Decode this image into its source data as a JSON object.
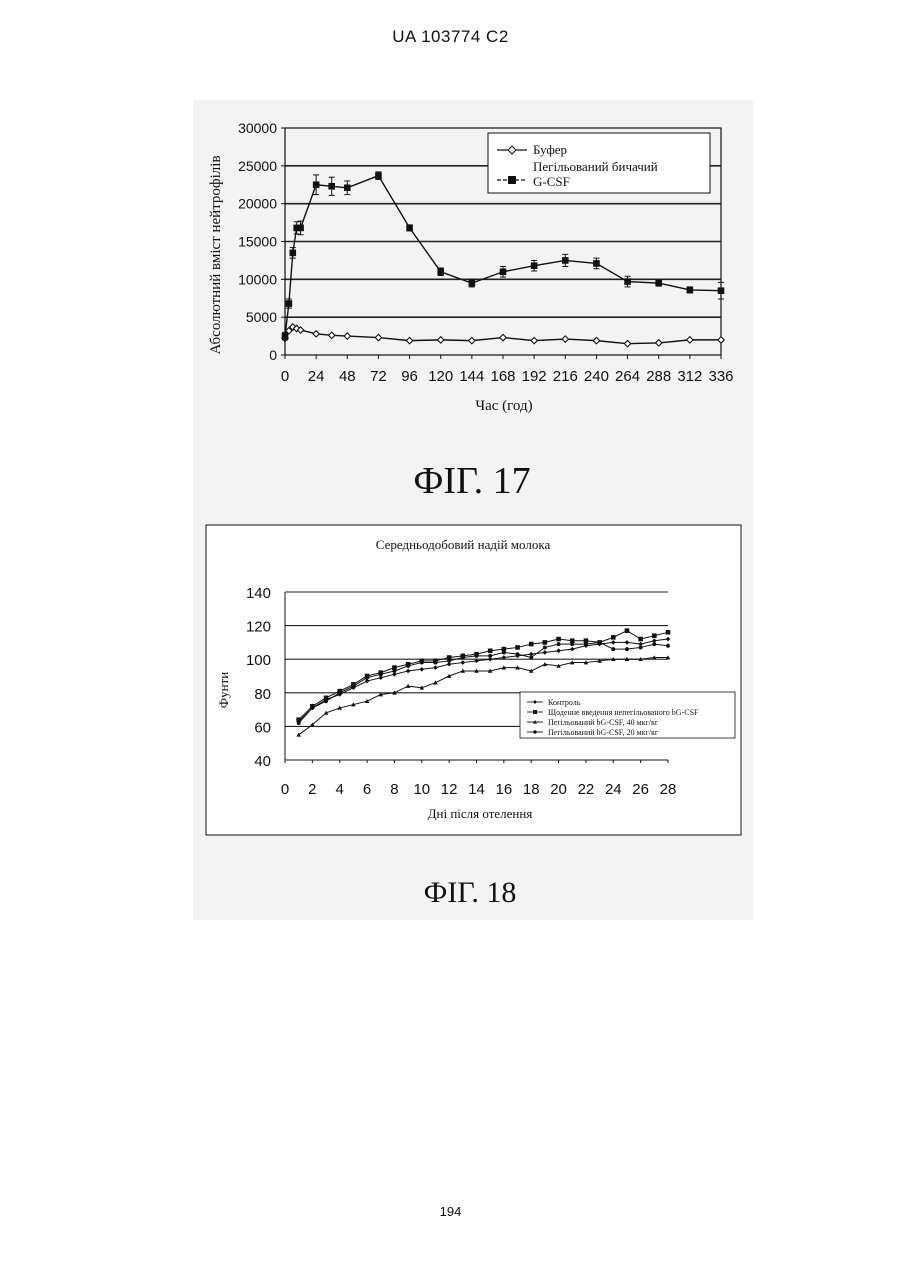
{
  "header": "UA   103774   C2",
  "page_number": "194",
  "chart_data": [
    {
      "type": "line",
      "figure_label": "ФІГ. 17",
      "title": "",
      "xlabel": "Час (год)",
      "ylabel": "Абсолютний вміст нейтрофілів",
      "xlim": [
        0,
        336
      ],
      "ylim": [
        0,
        30000
      ],
      "xticks": [
        "0",
        "24",
        "48",
        "72",
        "96",
        "120",
        "144",
        "168",
        "192",
        "216",
        "240",
        "264",
        "288",
        "312",
        "336"
      ],
      "yticks": [
        "0",
        "5000",
        "10000",
        "15000",
        "20000",
        "25000",
        "30000"
      ],
      "legend_position": "top-right",
      "legend": [
        "Буфер",
        "Пегільований бичачий",
        "G-CSF"
      ],
      "series": [
        {
          "name": "Буфер",
          "marker": "diamond-open",
          "x": [
            0,
            3,
            6,
            9,
            12,
            24,
            36,
            48,
            72,
            96,
            120,
            144,
            168,
            192,
            216,
            240,
            264,
            288,
            312,
            336
          ],
          "y": [
            2200,
            3200,
            3700,
            3500,
            3300,
            2800,
            2600,
            2500,
            2300,
            1900,
            2000,
            1900,
            2300,
            1900,
            2100,
            1900,
            1500,
            1600,
            2000,
            2000
          ]
        },
        {
          "name": "Пегільований бичачий G-CSF",
          "marker": "square-filled",
          "x": [
            0,
            3,
            6,
            9,
            12,
            24,
            36,
            48,
            72,
            96,
            120,
            144,
            168,
            192,
            216,
            240,
            264,
            288,
            312,
            336
          ],
          "y": [
            2500,
            6800,
            13500,
            16800,
            16800,
            22500,
            22300,
            22100,
            23700,
            16800,
            11000,
            9500,
            11000,
            11800,
            12500,
            12100,
            9700,
            9500,
            8600,
            8500
          ],
          "error": [
            500,
            600,
            700,
            800,
            900,
            1300,
            1200,
            900,
            500,
            400,
            500,
            500,
            700,
            700,
            800,
            700,
            700,
            400,
            400,
            1100
          ]
        }
      ]
    },
    {
      "type": "line",
      "figure_label": "ФІГ. 18",
      "title": "Середньодобовий надій молока",
      "xlabel": "Дні після отелення",
      "ylabel": "Фунти",
      "xlim": [
        0,
        28
      ],
      "ylim": [
        40,
        140
      ],
      "xticks": [
        "0",
        "2",
        "4",
        "6",
        "8",
        "10",
        "12",
        "14",
        "16",
        "18",
        "20",
        "22",
        "24",
        "26",
        "28"
      ],
      "yticks": [
        "40",
        "60",
        "80",
        "100",
        "120",
        "140"
      ],
      "legend_position": "bottom-right",
      "legend": [
        "Контроль",
        "Щоденне введення непегільованого bG-CSF",
        "Пегільований bG-CSF, 40 мкг/кг",
        "Пегільований bG-CSF, 20 мкг/кг"
      ],
      "series": [
        {
          "name": "Контроль",
          "marker": "diamond",
          "x": [
            1,
            2,
            3,
            4,
            5,
            6,
            7,
            8,
            9,
            10,
            11,
            12,
            13,
            14,
            15,
            16,
            17,
            18,
            19,
            20,
            21,
            22,
            23,
            24,
            25,
            26,
            27,
            28
          ],
          "y": [
            63,
            71,
            76,
            79,
            83,
            87,
            89,
            91,
            93,
            94,
            95,
            97,
            98,
            99,
            100,
            101,
            102,
            103,
            104,
            105,
            106,
            108,
            109,
            110,
            110,
            109,
            111,
            112
          ]
        },
        {
          "name": "Щоденне введення непегільованого bG-CSF",
          "marker": "square",
          "x": [
            1,
            2,
            3,
            4,
            5,
            6,
            7,
            8,
            9,
            10,
            11,
            12,
            13,
            14,
            15,
            16,
            17,
            18,
            19,
            20,
            21,
            22,
            23,
            24,
            25,
            26,
            27,
            28
          ],
          "y": [
            64,
            72,
            77,
            81,
            85,
            90,
            92,
            95,
            97,
            99,
            99,
            101,
            102,
            103,
            105,
            106,
            107,
            109,
            110,
            112,
            111,
            111,
            110,
            113,
            117,
            112,
            114,
            116
          ]
        },
        {
          "name": "Пегільований bG-CSF, 40 мкг/кг",
          "marker": "triangle",
          "x": [
            1,
            2,
            3,
            4,
            5,
            6,
            7,
            8,
            9,
            10,
            11,
            12,
            13,
            14,
            15,
            16,
            17,
            18,
            19,
            20,
            21,
            22,
            23,
            24,
            25,
            26,
            27,
            28
          ],
          "y": [
            55,
            61,
            68,
            71,
            73,
            75,
            79,
            80,
            84,
            83,
            86,
            90,
            93,
            93,
            93,
            95,
            95,
            93,
            97,
            96,
            98,
            98,
            99,
            100,
            100,
            100,
            101,
            101
          ]
        },
        {
          "name": "Пегільований bG-CSF, 20 мкг/кг",
          "marker": "circle",
          "x": [
            1,
            2,
            3,
            4,
            5,
            6,
            7,
            8,
            9,
            10,
            11,
            12,
            13,
            14,
            15,
            16,
            17,
            18,
            19,
            20,
            21,
            22,
            23,
            24,
            25,
            26,
            27,
            28
          ],
          "y": [
            62,
            71,
            75,
            80,
            84,
            89,
            91,
            93,
            96,
            98,
            98,
            99,
            101,
            102,
            102,
            104,
            103,
            101,
            107,
            109,
            109,
            109,
            110,
            106,
            106,
            107,
            109,
            108
          ]
        }
      ]
    }
  ]
}
